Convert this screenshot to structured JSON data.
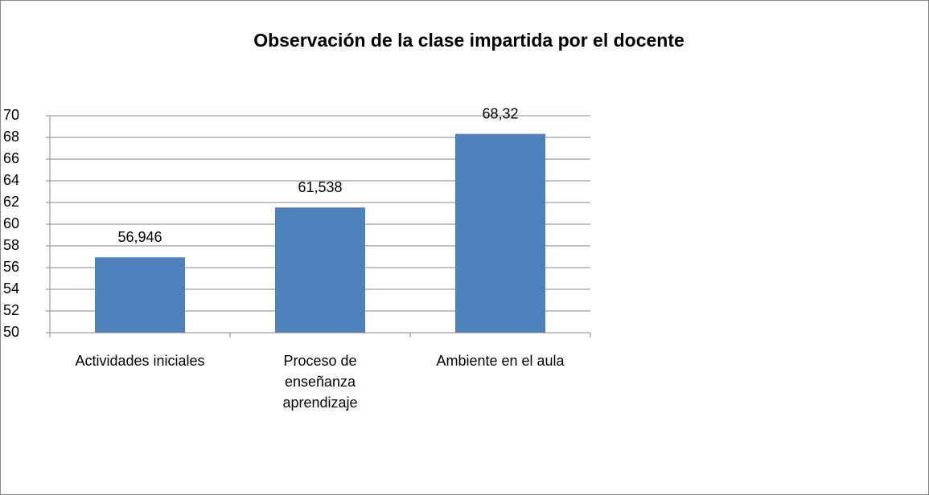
{
  "chart_data": {
    "type": "bar",
    "title": "Observación de la clase impartida por el docente",
    "categories": [
      "Actividades iniciales",
      "Proceso de enseñanza aprendizaje",
      "Ambiente en el aula"
    ],
    "values": [
      56.946,
      61.538,
      68.32
    ],
    "value_labels": [
      "56,946",
      "61,538",
      "68,32"
    ],
    "color": "#4f81bd",
    "ylim": [
      50,
      70
    ],
    "yticks": [
      50,
      52,
      54,
      56,
      58,
      60,
      62,
      64,
      66,
      68,
      70
    ],
    "grid": true
  }
}
